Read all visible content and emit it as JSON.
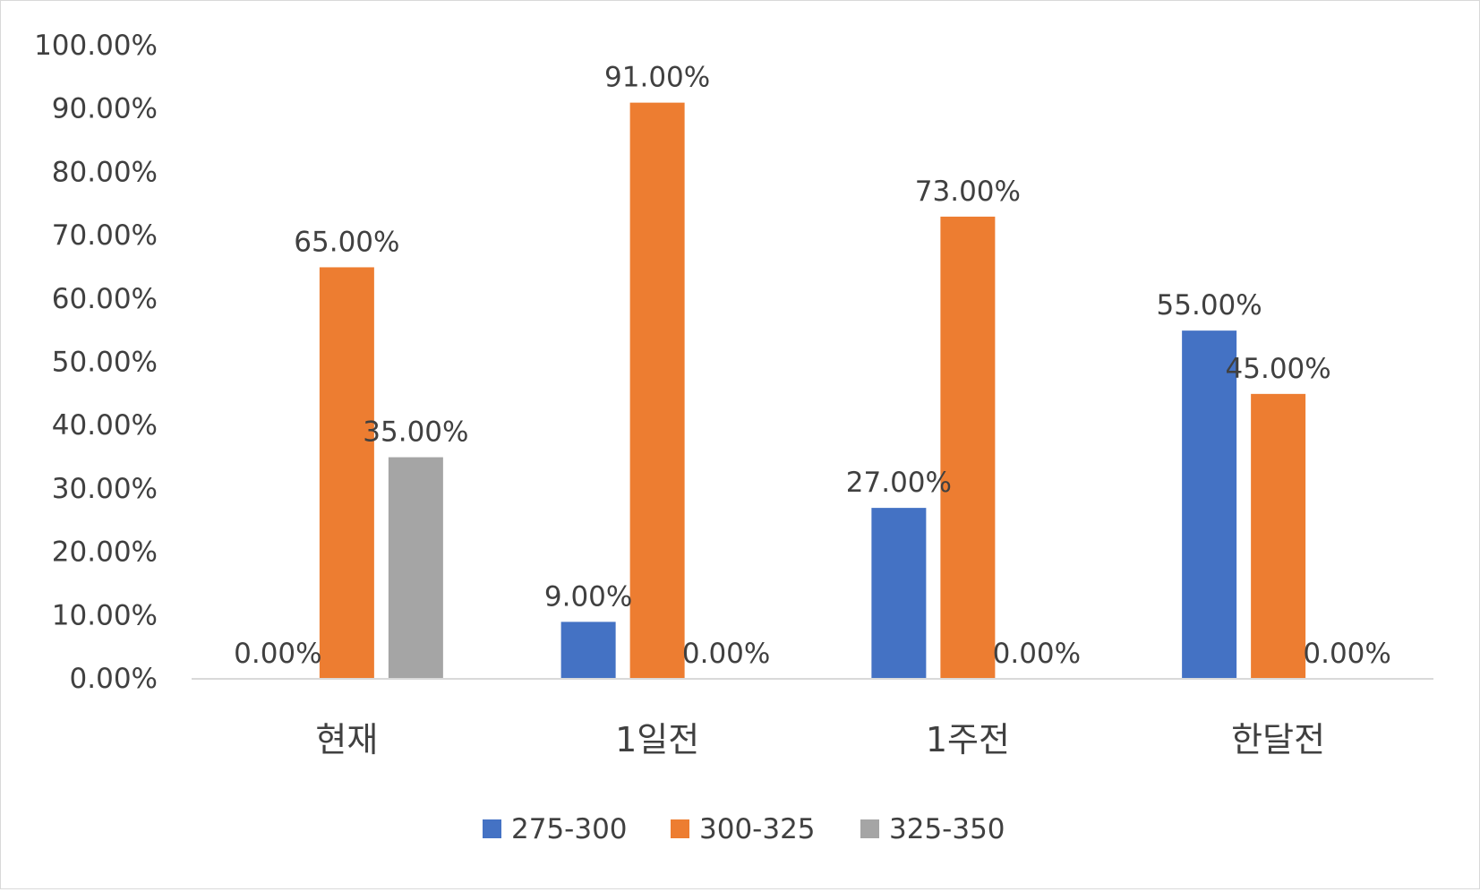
{
  "chart_data": {
    "type": "bar",
    "title": "",
    "xlabel": "",
    "ylabel": "",
    "categories": [
      "현재",
      "1일전",
      "1주전",
      "한달전"
    ],
    "series": [
      {
        "name": "275-300",
        "color": "#4472c4",
        "values": [
          0,
          9,
          27,
          55
        ]
      },
      {
        "name": "300-325",
        "color": "#ed7d31",
        "values": [
          65,
          91,
          73,
          45
        ]
      },
      {
        "name": "325-350",
        "color": "#a5a5a5",
        "values": [
          35,
          0,
          0,
          0
        ]
      }
    ],
    "ylim": [
      0,
      100
    ],
    "yticks": [
      0,
      10,
      20,
      30,
      40,
      50,
      60,
      70,
      80,
      90,
      100
    ],
    "ytick_labels": [
      "0.00%",
      "10.00%",
      "20.00%",
      "30.00%",
      "40.00%",
      "50.00%",
      "60.00%",
      "70.00%",
      "80.00%",
      "90.00%",
      "100.00%"
    ],
    "data_labels": [
      [
        "0.00%",
        "9.00%",
        "27.00%",
        "55.00%"
      ],
      [
        "65.00%",
        "91.00%",
        "73.00%",
        "45.00%"
      ],
      [
        "35.00%",
        "0.00%",
        "0.00%",
        "0.00%"
      ]
    ],
    "grid": false,
    "legend": "bottom",
    "axis_color": "#d9d9d9"
  }
}
